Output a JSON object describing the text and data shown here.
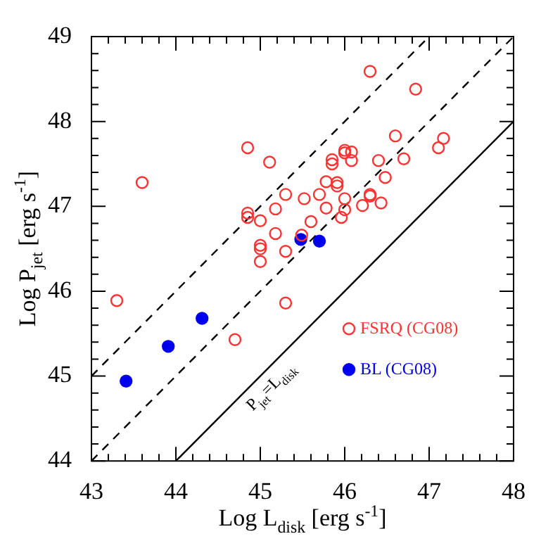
{
  "chart_data": {
    "type": "scatter",
    "xlabel": "Log L$_{disk}$ [erg s$^{-1}$]",
    "ylabel": "Log P$_{jet}$ [erg s$^{-1}$]",
    "xlim": [
      43,
      48
    ],
    "ylim": [
      44,
      49
    ],
    "xticks": [
      43,
      {
        "value": 43.2,
        "label": null
      },
      {
        "value": 43.4,
        "label": null
      },
      {
        "value": 43.6,
        "label": null
      },
      {
        "value": 43.8,
        "label": null
      },
      44,
      {
        "value": 44.2,
        "label": null
      },
      {
        "value": 44.4,
        "label": null
      },
      {
        "value": 44.6,
        "label": null
      },
      {
        "value": 44.8,
        "label": null
      },
      45,
      {
        "value": 45.2,
        "label": null
      },
      {
        "value": 45.4,
        "label": null
      },
      {
        "value": 45.6,
        "label": null
      },
      {
        "value": 45.8,
        "label": null
      },
      46,
      {
        "value": 46.2,
        "label": null
      },
      {
        "value": 46.4,
        "label": null
      },
      {
        "value": 46.6,
        "label": null
      },
      {
        "value": 46.8,
        "label": null
      },
      47,
      {
        "value": 47.2,
        "label": null
      },
      {
        "value": 47.4,
        "label": null
      },
      {
        "value": 47.6,
        "label": null
      },
      {
        "value": 47.8,
        "label": null
      },
      48
    ],
    "yticks": [
      44,
      {
        "value": 44.2,
        "label": null
      },
      {
        "value": 44.4,
        "label": null
      },
      {
        "value": 44.6,
        "label": null
      },
      {
        "value": 44.8,
        "label": null
      },
      45,
      {
        "value": 45.2,
        "label": null
      },
      {
        "value": 45.4,
        "label": null
      },
      {
        "value": 45.6,
        "label": null
      },
      {
        "value": 45.8,
        "label": null
      },
      46,
      {
        "value": 46.2,
        "label": null
      },
      {
        "value": 46.4,
        "label": null
      },
      {
        "value": 46.6,
        "label": null
      },
      {
        "value": 46.8,
        "label": null
      },
      47,
      {
        "value": 47.2,
        "label": null
      },
      {
        "value": 47.4,
        "label": null
      },
      {
        "value": 47.6,
        "label": null
      },
      {
        "value": 47.8,
        "label": null
      },
      48,
      {
        "value": 48.2,
        "label": null
      },
      {
        "value": 48.4,
        "label": null
      },
      {
        "value": 48.6,
        "label": null
      },
      {
        "value": 48.8,
        "label": null
      },
      49
    ],
    "grid": false,
    "legend": "bottom right",
    "marker": "circle",
    "series": [
      {
        "name": "FSRQ (CG08)",
        "color": "#ff3333",
        "x": [
          44.85,
          45.11,
          43.6,
          45.3,
          45.52,
          44.85,
          44.85,
          45.0,
          45.18,
          45.18,
          45.49,
          46.3,
          46.84,
          46.6,
          47.17,
          47.11,
          46.0,
          46.08,
          46.0,
          46.08,
          45.85,
          45.85,
          46.4,
          46.7,
          46.48,
          45.78,
          45.91,
          45.91,
          45.7,
          46.3,
          46.3,
          46.0,
          45.78,
          46.21,
          46.43,
          46.0,
          45.96,
          45.6,
          45.0,
          45.0,
          45.3,
          45.0,
          43.3,
          45.3,
          44.7
        ],
        "values": [
          47.69,
          47.52,
          47.28,
          47.14,
          47.09,
          46.92,
          46.87,
          46.83,
          46.97,
          46.68,
          46.66,
          48.59,
          48.38,
          47.83,
          47.8,
          47.69,
          47.66,
          47.64,
          47.63,
          47.54,
          47.55,
          47.5,
          47.54,
          47.56,
          47.34,
          47.29,
          47.28,
          47.24,
          47.14,
          47.14,
          47.12,
          47.09,
          46.98,
          47.01,
          47.04,
          46.96,
          46.87,
          46.82,
          46.54,
          46.5,
          46.47,
          46.35,
          45.89,
          45.86,
          45.43
        ]
      },
      {
        "name": "BL (CG08)",
        "color": "#0000ee",
        "x": [
          45.48,
          45.7,
          43.41,
          43.91,
          44.31
        ],
        "values": [
          46.61,
          46.59,
          44.94,
          45.35,
          45.68
        ]
      },
      {
        "type": "line",
        "color": "#000000",
        "line_style": "dashed",
        "marker": "none",
        "x": [
          43,
          47
        ],
        "values": [
          45,
          49
        ]
      },
      {
        "type": "line",
        "color": "#000000",
        "line_style": "dashed",
        "marker": "none",
        "x": [
          43,
          48
        ],
        "values": [
          44,
          49
        ]
      },
      {
        "type": "line",
        "color": "#000000",
        "line_style": "solid",
        "marker": "none",
        "x": [
          44,
          48
        ],
        "values": [
          44,
          48
        ]
      }
    ],
    "annotations": [
      {
        "text": "P$_{jet}$=L$_{disk}$",
        "x": 45,
        "y": 45
      }
    ]
  }
}
